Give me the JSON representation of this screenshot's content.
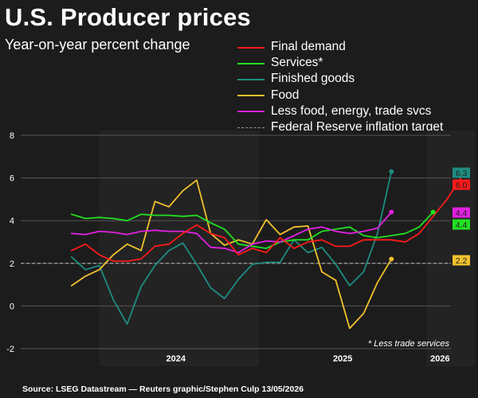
{
  "title": "U.S. Producer prices",
  "subtitle": "Year-on-year percent change",
  "source": "Source: LSEG Datastream — Reuters graphic/Stephen Culp 13/05/2026",
  "footnote": "* Less trade services",
  "colors": {
    "background": "#1c1c1c",
    "final_demand": "#ff1a1a",
    "services": "#22e022",
    "finished_goods": "#1e8c80",
    "food": "#f2c12e",
    "core": "#e020e0",
    "target": "#9a9a9a"
  },
  "chart_data": {
    "type": "line",
    "title": "U.S. Producer prices",
    "subtitle": "Year-on-year percent change",
    "xlabel": "",
    "ylabel": "",
    "ylim": [
      -2,
      8
    ],
    "yticks": [
      -2,
      0,
      2,
      4,
      6,
      8
    ],
    "xticks": [
      "2024",
      "2025",
      "2026"
    ],
    "grid": true,
    "legend_position": "top-right",
    "x": [
      "2023-07",
      "2023-08",
      "2023-09",
      "2023-10",
      "2023-11",
      "2023-12",
      "2024-01",
      "2024-02",
      "2024-03",
      "2024-04",
      "2024-05",
      "2024-06",
      "2024-07",
      "2024-08",
      "2024-09",
      "2024-10",
      "2024-11",
      "2024-12",
      "2025-01",
      "2025-02",
      "2025-03",
      "2025-04",
      "2025-05",
      "2025-06",
      "2025-07",
      "2025-08",
      "2025-09",
      "2025-10",
      "2025-11",
      "2025-12",
      "2026-01",
      "2026-02",
      "2026-03",
      "2026-04"
    ],
    "series": [
      {
        "name": "Final demand",
        "key": "final_demand",
        "values": [
          null,
          null,
          null,
          null,
          2.6,
          2.9,
          2.4,
          2.1,
          2.1,
          2.2,
          2.8,
          2.9,
          3.4,
          3.8,
          3.4,
          3.2,
          2.4,
          2.7,
          2.5,
          3.2,
          2.7,
          3.0,
          3.1,
          2.8,
          2.8,
          3.1,
          3.1,
          3.1,
          3.0,
          3.4,
          4.2,
          5.0,
          6.0,
          null
        ],
        "end_label": "6.0"
      },
      {
        "name": "Services*",
        "key": "services",
        "values": [
          null,
          null,
          null,
          null,
          4.3,
          4.1,
          4.15,
          4.1,
          4.0,
          4.3,
          4.25,
          4.25,
          4.2,
          4.25,
          3.9,
          3.6,
          2.9,
          2.8,
          2.7,
          3.0,
          3.1,
          3.1,
          3.5,
          3.6,
          3.7,
          3.3,
          3.2,
          3.3,
          3.4,
          3.7,
          4.4,
          null,
          null,
          null
        ],
        "end_label": "4.4"
      },
      {
        "name": "Finished goods",
        "key": "finished_goods",
        "values": [
          null,
          null,
          null,
          null,
          2.3,
          1.7,
          1.9,
          0.3,
          -0.85,
          0.9,
          1.9,
          2.6,
          2.95,
          1.95,
          0.85,
          0.35,
          1.25,
          1.95,
          2.05,
          2.05,
          3.1,
          2.5,
          2.75,
          1.95,
          0.95,
          1.6,
          3.4,
          6.3,
          null,
          null,
          null,
          null,
          null,
          null
        ],
        "end_label": "6.3"
      },
      {
        "name": "Food",
        "key": "food",
        "values": [
          null,
          null,
          null,
          null,
          0.95,
          1.4,
          1.7,
          2.4,
          2.9,
          2.6,
          4.9,
          4.65,
          5.4,
          5.9,
          3.4,
          2.85,
          3.1,
          2.9,
          4.05,
          3.35,
          3.7,
          3.75,
          1.6,
          1.2,
          -1.05,
          -0.35,
          1.1,
          2.2,
          null,
          null,
          null,
          null,
          null,
          null
        ],
        "end_label": "2.2"
      },
      {
        "name": "Less food, energy, trade svcs",
        "key": "core",
        "values": [
          null,
          null,
          null,
          null,
          3.4,
          3.35,
          3.5,
          3.45,
          3.35,
          3.5,
          3.55,
          3.5,
          3.5,
          3.4,
          2.75,
          2.7,
          2.5,
          2.9,
          3.05,
          3.0,
          3.3,
          3.6,
          3.7,
          3.5,
          3.4,
          3.5,
          3.65,
          4.4,
          null,
          null,
          null,
          null,
          null,
          null
        ],
        "end_label": "4.4"
      },
      {
        "name": "Federal Reserve inflation target",
        "key": "target",
        "values": [
          2,
          2,
          2,
          2,
          2,
          2,
          2,
          2,
          2,
          2,
          2,
          2,
          2,
          2,
          2,
          2,
          2,
          2,
          2,
          2,
          2,
          2,
          2,
          2,
          2,
          2,
          2,
          2,
          2,
          2,
          2,
          2,
          2,
          2
        ],
        "dashed": true
      }
    ]
  }
}
